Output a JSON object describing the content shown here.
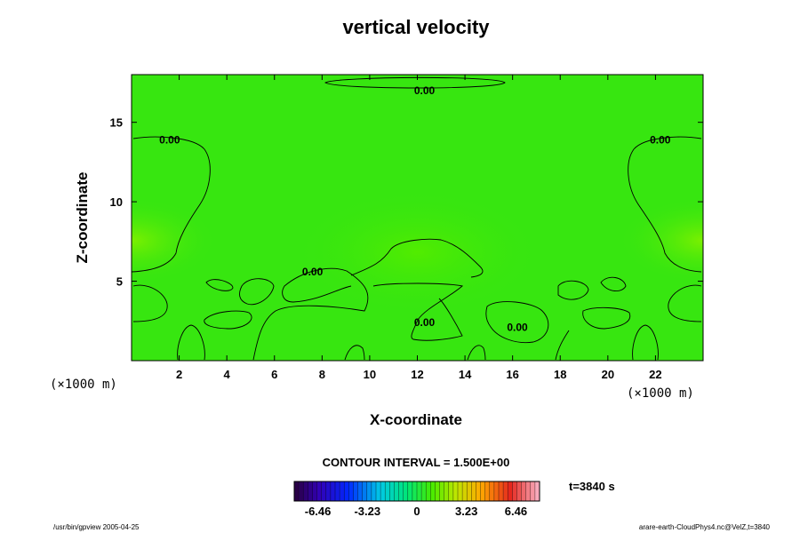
{
  "chart_data": {
    "type": "heatmap",
    "title": "vertical velocity",
    "xlabel": "X-coordinate",
    "ylabel": "Z-coordinate",
    "x_unit": "(×1000 m)",
    "z_unit": "(×1000 m)",
    "xlim": [
      0,
      24
    ],
    "ylim": [
      0,
      18
    ],
    "x_ticks": [
      2,
      4,
      6,
      8,
      10,
      12,
      14,
      16,
      18,
      20,
      22
    ],
    "y_ticks": [
      5,
      10,
      15
    ],
    "contour_interval_text": "CONTOUR INTERVAL = 1.500E+00",
    "contour_labels": [
      {
        "text": "0.00",
        "x": 12.3,
        "z": 17.0
      },
      {
        "text": "0.00",
        "x": 1.6,
        "z": 13.9
      },
      {
        "text": "0.00",
        "x": 22.2,
        "z": 13.9
      },
      {
        "text": "0.00",
        "x": 7.6,
        "z": 5.6
      },
      {
        "text": "0.00",
        "x": 12.3,
        "z": 2.4
      },
      {
        "text": "0.00",
        "x": 16.2,
        "z": 2.1
      }
    ],
    "colorbar": {
      "ticks": [
        "-6.46",
        "-3.23",
        "0",
        "3.23",
        "6.46"
      ],
      "range": [
        -8.0,
        8.0
      ]
    },
    "time_label": "t=3840 s",
    "grid": false
  },
  "footer": {
    "left": "/usr/bin/gpview 2005-04-25",
    "right": "arare-earth-CloudPhys4.nc@VelZ,t=3840"
  }
}
